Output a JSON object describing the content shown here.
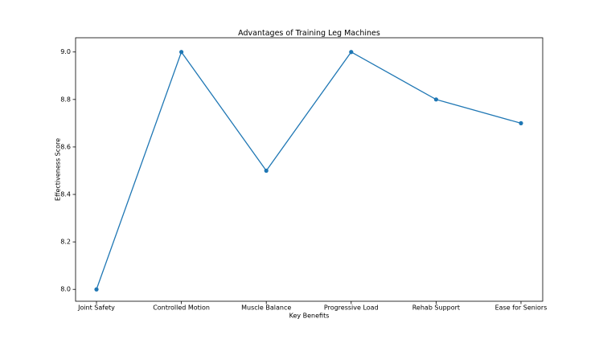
{
  "chart_data": {
    "type": "line",
    "title": "Advantages of Training Leg Machines",
    "x_label": "Key Benefits",
    "y_label": "Effectiveness Score",
    "categories": [
      "Joint Safety",
      "Controlled Motion",
      "Muscle Balance",
      "Progressive Load",
      "Rehab Support",
      "Ease for Seniors"
    ],
    "values": [
      8.0,
      9.0,
      8.5,
      9.0,
      8.8,
      8.7
    ],
    "color": "#1f77b4",
    "ylim": [
      7.95,
      9.06
    ],
    "yticks": [
      {
        "value": 8.0,
        "label": "8.0"
      },
      {
        "value": 8.2,
        "label": "8.2"
      },
      {
        "value": 8.4,
        "label": "8.4"
      },
      {
        "value": 8.6,
        "label": "8.6"
      },
      {
        "value": 8.8,
        "label": "8.8"
      },
      {
        "value": 9.0,
        "label": "9.0"
      }
    ],
    "grid": false
  }
}
